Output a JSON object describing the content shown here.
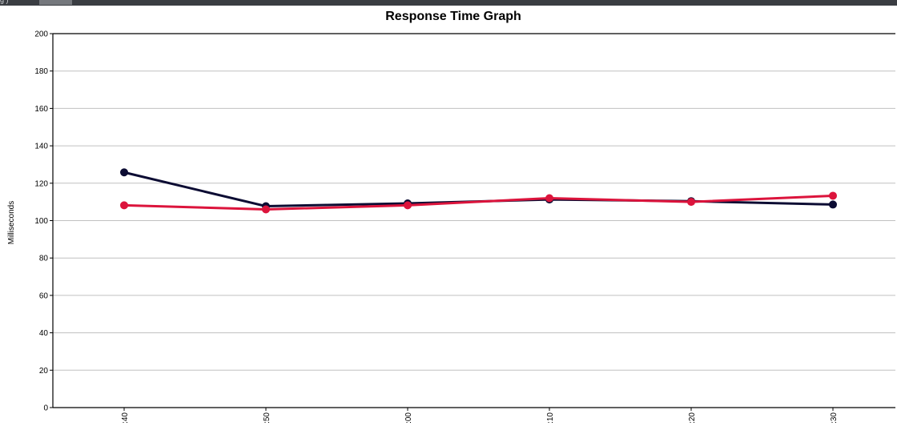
{
  "window": {
    "tab_text": "g   )"
  },
  "chart_data": {
    "type": "line",
    "title": "Response Time Graph",
    "xlabel": "",
    "ylabel": "Milliseconds",
    "ylim": [
      0,
      200
    ],
    "yticks": [
      0,
      20,
      40,
      60,
      80,
      100,
      120,
      140,
      160,
      180,
      200
    ],
    "grid": true,
    "categories": [
      ":40",
      ":50",
      ":00",
      ":10",
      ":20",
      ":30"
    ],
    "series": [
      {
        "color": "#0c0c33",
        "values": [
          125.8,
          107.7,
          109.2,
          111.3,
          110.4,
          108.6
        ]
      },
      {
        "color": "#dc143c",
        "values": [
          108.2,
          106.0,
          108.2,
          112.0,
          110.0,
          113.3
        ]
      }
    ]
  }
}
